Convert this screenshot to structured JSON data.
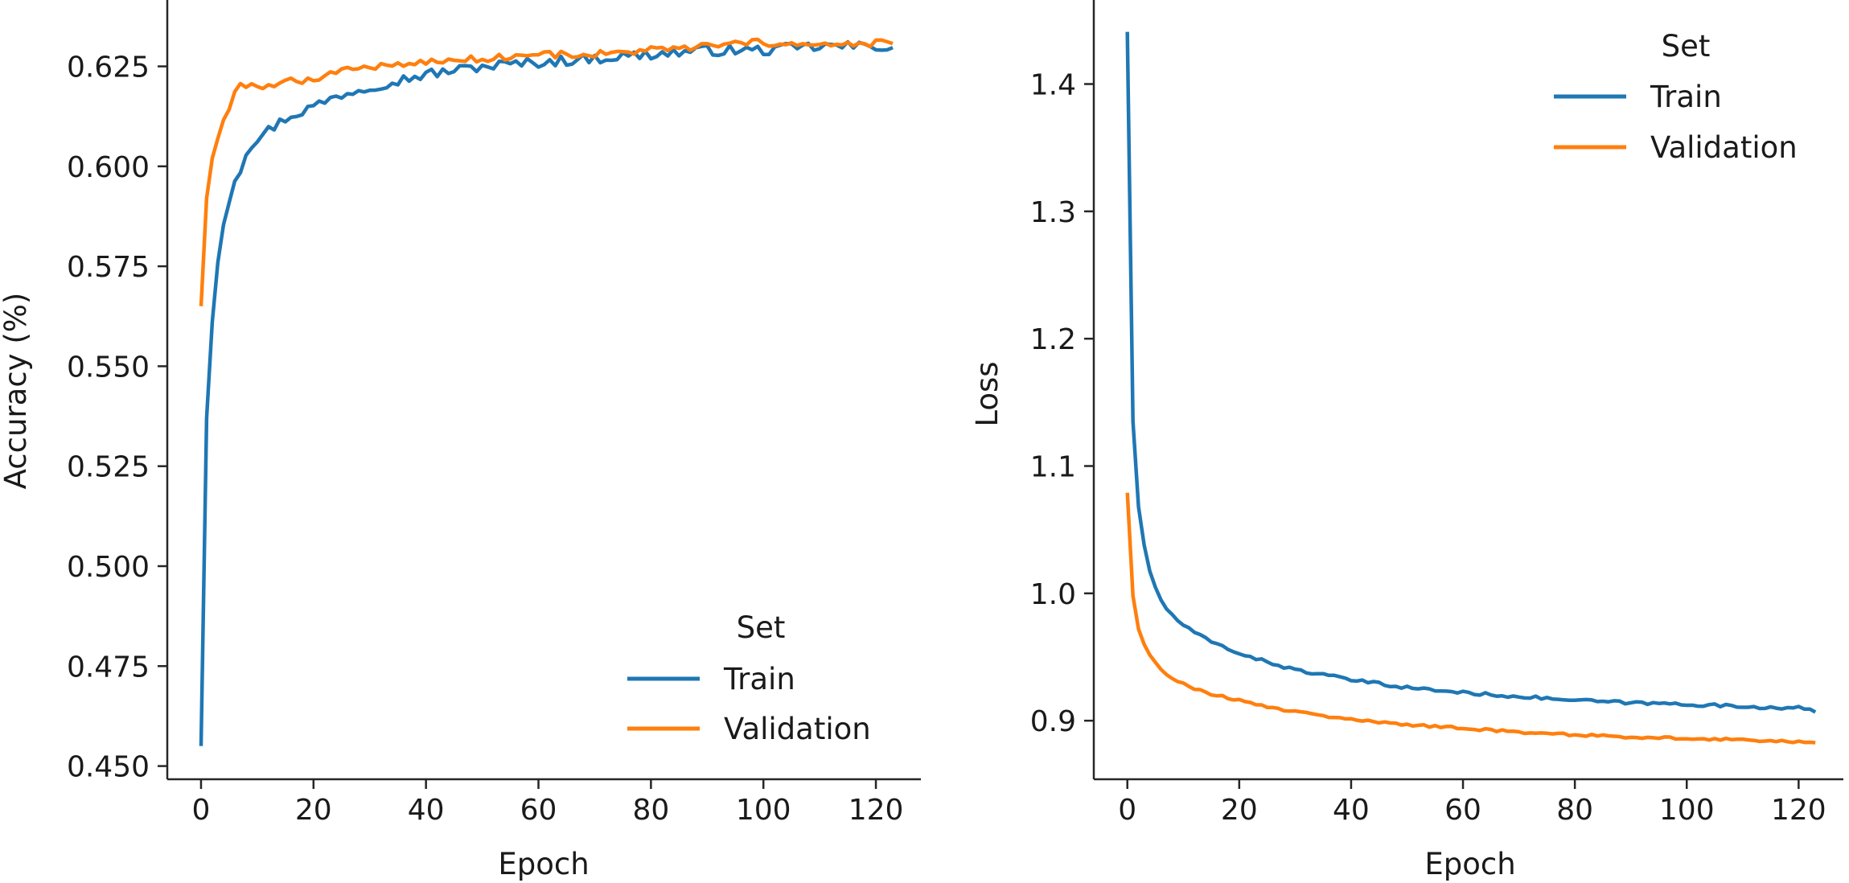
{
  "colors": {
    "train": "#1f77b4",
    "validation": "#ff7f0e",
    "axis": "#262626",
    "text": "#1a1a1a"
  },
  "chart_data": [
    {
      "type": "line",
      "title": "",
      "xlabel": "Epoch",
      "ylabel": "Accuracy (%)",
      "xlim": [
        -6,
        128
      ],
      "ylim": [
        0.4467,
        0.6416
      ],
      "xticks": [
        0,
        20,
        40,
        60,
        80,
        100,
        120
      ],
      "xtick_labels": [
        "0",
        "20",
        "40",
        "60",
        "80",
        "100",
        "120"
      ],
      "yticks": [
        0.45,
        0.475,
        0.5,
        0.525,
        0.55,
        0.575,
        0.6,
        0.625
      ],
      "ytick_labels": [
        "0.450",
        "0.475",
        "0.500",
        "0.525",
        "0.550",
        "0.575",
        "0.600",
        "0.625"
      ],
      "grid": false,
      "legend": {
        "title": "Set",
        "position": "lower-right"
      },
      "series": [
        {
          "name": "Train",
          "color": "#1f77b4",
          "anchors": [
            [
              0,
              0.455
            ],
            [
              1,
              0.537
            ],
            [
              2,
              0.561
            ],
            [
              3,
              0.576
            ],
            [
              4,
              0.586
            ],
            [
              5,
              0.592
            ],
            [
              6,
              0.597
            ],
            [
              7,
              0.599
            ],
            [
              8,
              0.604
            ],
            [
              10,
              0.607
            ],
            [
              12,
              0.609
            ],
            [
              15,
              0.612
            ],
            [
              20,
              0.615
            ],
            [
              25,
              0.618
            ],
            [
              30,
              0.62
            ],
            [
              40,
              0.623
            ],
            [
              50,
              0.625
            ],
            [
              60,
              0.626
            ],
            [
              70,
              0.627
            ],
            [
              80,
              0.628
            ],
            [
              90,
              0.629
            ],
            [
              100,
              0.629
            ],
            [
              110,
              0.63
            ],
            [
              123,
              0.63
            ]
          ],
          "noise": 0.0013
        },
        {
          "name": "Validation",
          "color": "#ff7f0e",
          "anchors": [
            [
              0,
              0.565
            ],
            [
              1,
              0.592
            ],
            [
              2,
              0.602
            ],
            [
              3,
              0.607
            ],
            [
              4,
              0.612
            ],
            [
              5,
              0.614
            ],
            [
              6,
              0.618
            ],
            [
              7,
              0.62
            ],
            [
              8,
              0.62
            ],
            [
              10,
              0.62
            ],
            [
              15,
              0.621
            ],
            [
              20,
              0.622
            ],
            [
              25,
              0.624
            ],
            [
              30,
              0.625
            ],
            [
              40,
              0.626
            ],
            [
              50,
              0.627
            ],
            [
              60,
              0.628
            ],
            [
              70,
              0.628
            ],
            [
              80,
              0.629
            ],
            [
              90,
              0.63
            ],
            [
              100,
              0.631
            ],
            [
              110,
              0.63
            ],
            [
              123,
              0.631
            ]
          ],
          "noise": 0.0009
        }
      ]
    },
    {
      "type": "line",
      "title": "",
      "xlabel": "Epoch",
      "ylabel": "Loss",
      "xlim": [
        -6,
        128
      ],
      "ylim": [
        0.854,
        1.466
      ],
      "xticks": [
        0,
        20,
        40,
        60,
        80,
        100,
        120
      ],
      "xtick_labels": [
        "0",
        "20",
        "40",
        "60",
        "80",
        "100",
        "120"
      ],
      "yticks": [
        0.9,
        1.0,
        1.1,
        1.2,
        1.3,
        1.4
      ],
      "ytick_labels": [
        "0.9",
        "1.0",
        "1.1",
        "1.2",
        "1.3",
        "1.4"
      ],
      "grid": false,
      "legend": {
        "title": "Set",
        "position": "upper-right"
      },
      "series": [
        {
          "name": "Train",
          "color": "#1f77b4",
          "anchors": [
            [
              0,
              1.441
            ],
            [
              1,
              1.135
            ],
            [
              2,
              1.068
            ],
            [
              3,
              1.038
            ],
            [
              4,
              1.018
            ],
            [
              5,
              1.004
            ],
            [
              6,
              0.995
            ],
            [
              7,
              0.988
            ],
            [
              8,
              0.983
            ],
            [
              10,
              0.975
            ],
            [
              12,
              0.969
            ],
            [
              15,
              0.962
            ],
            [
              20,
              0.953
            ],
            [
              25,
              0.946
            ],
            [
              30,
              0.94
            ],
            [
              40,
              0.932
            ],
            [
              50,
              0.926
            ],
            [
              60,
              0.922
            ],
            [
              70,
              0.919
            ],
            [
              80,
              0.916
            ],
            [
              90,
              0.914
            ],
            [
              100,
              0.913
            ],
            [
              110,
              0.911
            ],
            [
              120,
              0.91
            ],
            [
              123,
              0.907
            ]
          ],
          "noise": 0.0012
        },
        {
          "name": "Validation",
          "color": "#ff7f0e",
          "anchors": [
            [
              0,
              1.079
            ],
            [
              1,
              0.998
            ],
            [
              2,
              0.972
            ],
            [
              3,
              0.96
            ],
            [
              4,
              0.952
            ],
            [
              5,
              0.946
            ],
            [
              6,
              0.941
            ],
            [
              7,
              0.937
            ],
            [
              8,
              0.934
            ],
            [
              10,
              0.929
            ],
            [
              12,
              0.925
            ],
            [
              15,
              0.921
            ],
            [
              20,
              0.916
            ],
            [
              25,
              0.911
            ],
            [
              30,
              0.907
            ],
            [
              40,
              0.901
            ],
            [
              50,
              0.897
            ],
            [
              60,
              0.894
            ],
            [
              70,
              0.891
            ],
            [
              80,
              0.889
            ],
            [
              90,
              0.887
            ],
            [
              100,
              0.886
            ],
            [
              110,
              0.885
            ],
            [
              123,
              0.883
            ]
          ],
          "noise": 0.0009
        }
      ]
    }
  ]
}
